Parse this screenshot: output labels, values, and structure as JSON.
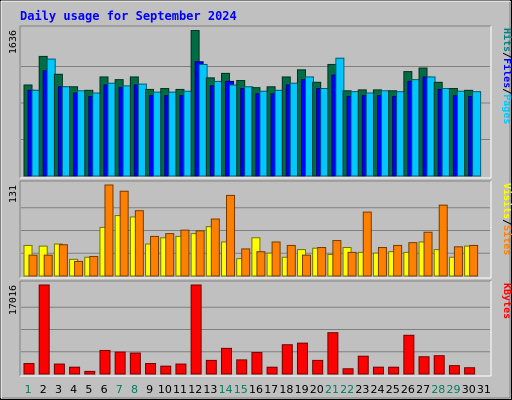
{
  "chart_data": {
    "type": "bar",
    "title": "Daily usage for September 2024",
    "days": [
      "1",
      "2",
      "3",
      "4",
      "5",
      "6",
      "7",
      "8",
      "9",
      "10",
      "11",
      "12",
      "13",
      "14",
      "15",
      "16",
      "17",
      "18",
      "19",
      "20",
      "21",
      "22",
      "23",
      "24",
      "25",
      "26",
      "27",
      "28",
      "29",
      "30",
      "31"
    ],
    "weekend_days": [
      1,
      7,
      8,
      14,
      15,
      21,
      22,
      28,
      29
    ],
    "panels": [
      {
        "name": "hits-files-pages",
        "max_label": "1636",
        "ymax": 1636,
        "side_label": [
          {
            "text": "Pages",
            "color": "#00c8ff"
          },
          {
            "text": "Files",
            "color": "#0000ff"
          },
          {
            "text": "Hits",
            "color": "#008080"
          }
        ],
        "series": [
          {
            "name": "Hits",
            "color": "#006c46",
            "values": [
              1020,
              1340,
              1140,
              1000,
              960,
              1110,
              1080,
              1110,
              970,
              980,
              970,
              1630,
              1100,
              1150,
              1070,
              990,
              1000,
              1110,
              1190,
              1050,
              1250,
              955,
              965,
              965,
              955,
              1170,
              1210,
              1050,
              980,
              960,
              0
            ]
          },
          {
            "name": "Files",
            "color": "#0000ff",
            "values": [
              960,
              1180,
              1000,
              930,
              890,
              1020,
              990,
              1020,
              900,
              900,
              900,
              1280,
              1010,
              1060,
              980,
              920,
              920,
              1020,
              1080,
              980,
              1130,
              890,
              900,
              900,
              890,
              1060,
              1110,
              970,
              900,
              890,
              0
            ]
          },
          {
            "name": "Pages",
            "color": "#00c8ff",
            "values": [
              960,
              1310,
              1000,
              955,
              930,
              1040,
              1010,
              1030,
              940,
              940,
              950,
              1250,
              1060,
              1020,
              1000,
              950,
              960,
              1040,
              1110,
              980,
              1320,
              945,
              930,
              955,
              945,
              1080,
              1110,
              980,
              950,
              945,
              0
            ]
          }
        ]
      },
      {
        "name": "visits-sites",
        "max_label": "131",
        "ymax": 131,
        "side_label": [
          {
            "text": "Sites",
            "color": "#ff8000"
          },
          {
            "text": "Visits",
            "color": "#ffff00"
          }
        ],
        "series": [
          {
            "name": "Visits",
            "color": "#ffff00",
            "values": [
              44,
              43,
              46,
              24,
              27,
              70,
              87,
              85,
              46,
              55,
              57,
              61,
              71,
              49,
              25,
              55,
              33,
              27,
              38,
              40,
              31,
              41,
              34,
              33,
              35,
              34,
              49,
              38,
              27,
              43,
              0
            ]
          },
          {
            "name": "Sites",
            "color": "#ff8000",
            "values": [
              30,
              30,
              45,
              21,
              28,
              131,
              122,
              94,
              57,
              61,
              66,
              65,
              82,
              116,
              39,
              35,
              49,
              44,
              30,
              41,
              51,
              34,
              92,
              41,
              44,
              48,
              63,
              102,
              42,
              44,
              0
            ]
          }
        ]
      },
      {
        "name": "kbytes",
        "max_label": "17016",
        "ymax": 17016,
        "side_label": [
          {
            "text": "KBytes",
            "color": "#ff0000"
          }
        ],
        "series": [
          {
            "name": "KBytes",
            "color": "#ff0000",
            "values": [
              2000,
              17016,
              1900,
              1300,
              500,
              4500,
              4200,
              4000,
              2000,
              1500,
              1900,
              17016,
              2600,
              4900,
              2700,
              4100,
              1300,
              5600,
              5900,
              2600,
              7900,
              1000,
              3400,
              1300,
              1300,
              7400,
              3300,
              3500,
              1600,
              1200,
              0
            ]
          }
        ]
      }
    ]
  }
}
